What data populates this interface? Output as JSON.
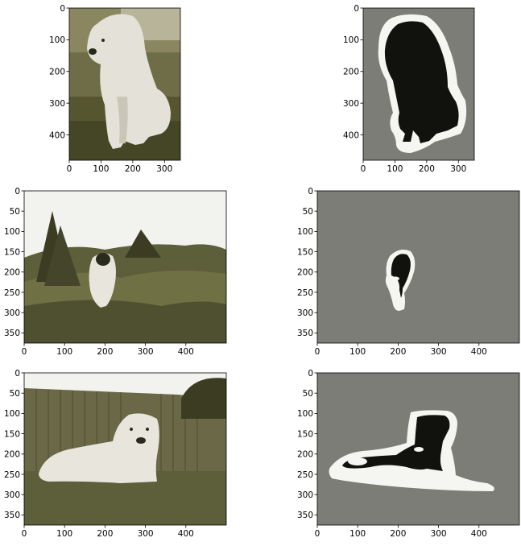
{
  "chart_data": [
    {
      "type": "image",
      "panel": "image-1",
      "content": "photo",
      "xlim": [
        0,
        350
      ],
      "ylim": [
        480,
        0
      ],
      "xticks": [
        0,
        100,
        200,
        300
      ],
      "yticks": [
        0,
        100,
        200,
        300,
        400
      ]
    },
    {
      "type": "image",
      "panel": "mask-1",
      "content": "segmentation-mask",
      "xlim": [
        0,
        350
      ],
      "ylim": [
        480,
        0
      ],
      "xticks": [
        0,
        100,
        200,
        300
      ],
      "yticks": [
        0,
        100,
        200,
        300,
        400
      ]
    },
    {
      "type": "image",
      "panel": "image-2",
      "content": "photo",
      "xlim": [
        0,
        500
      ],
      "ylim": [
        375,
        0
      ],
      "xticks": [
        0,
        100,
        200,
        300,
        400
      ],
      "yticks": [
        0,
        50,
        100,
        150,
        200,
        250,
        300,
        350
      ]
    },
    {
      "type": "image",
      "panel": "mask-2",
      "content": "segmentation-mask",
      "xlim": [
        0,
        500
      ],
      "ylim": [
        375,
        0
      ],
      "xticks": [
        0,
        100,
        200,
        300,
        400
      ],
      "yticks": [
        0,
        50,
        100,
        150,
        200,
        250,
        300,
        350
      ]
    },
    {
      "type": "image",
      "panel": "image-3",
      "content": "photo",
      "xlim": [
        0,
        500
      ],
      "ylim": [
        375,
        0
      ],
      "xticks": [
        0,
        100,
        200,
        300,
        400
      ],
      "yticks": [
        0,
        50,
        100,
        150,
        200,
        250,
        300,
        350
      ]
    },
    {
      "type": "image",
      "panel": "mask-3",
      "content": "segmentation-mask",
      "xlim": [
        0,
        500
      ],
      "ylim": [
        375,
        0
      ],
      "xticks": [
        0,
        100,
        200,
        300,
        400
      ],
      "yticks": [
        0,
        50,
        100,
        150,
        200,
        250,
        300,
        350
      ]
    }
  ],
  "colors": {
    "mask_background": "#7d7d77",
    "mask_foreground": "#11120e",
    "mask_border": "#f5f5f2",
    "photo_sky": "#f2f2ee",
    "photo_grass": "#5d5e3a",
    "photo_dark": "#3b3c22",
    "photo_dog_light": "#e8e6dc"
  }
}
